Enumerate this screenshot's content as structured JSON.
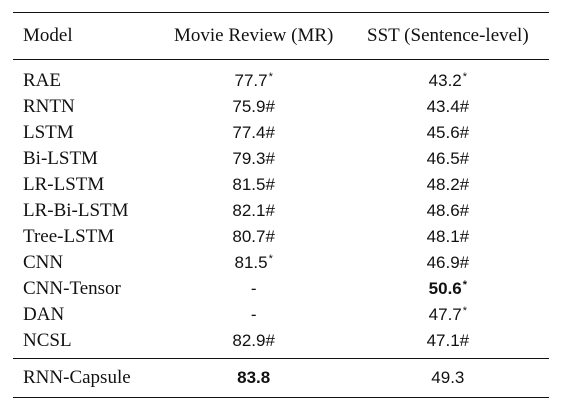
{
  "table": {
    "headers": {
      "model": "Model",
      "mr": "Movie Review (MR)",
      "sst": "SST (Sentence-level)"
    },
    "rows": [
      {
        "model": "RAE",
        "mr": "77.7",
        "mr_mark": "*",
        "sst": "43.2",
        "sst_mark": "*"
      },
      {
        "model": "RNTN",
        "mr": "75.9#",
        "mr_mark": "",
        "sst": "43.4#",
        "sst_mark": ""
      },
      {
        "model": "LSTM",
        "mr": "77.4#",
        "mr_mark": "",
        "sst": "45.6#",
        "sst_mark": ""
      },
      {
        "model": "Bi-LSTM",
        "mr": "79.3#",
        "mr_mark": "",
        "sst": "46.5#",
        "sst_mark": ""
      },
      {
        "model": "LR-LSTM",
        "mr": "81.5#",
        "mr_mark": "",
        "sst": "48.2#",
        "sst_mark": ""
      },
      {
        "model": "LR-Bi-LSTM",
        "mr": "82.1#",
        "mr_mark": "",
        "sst": "48.6#",
        "sst_mark": ""
      },
      {
        "model": "Tree-LSTM",
        "mr": "80.7#",
        "mr_mark": "",
        "sst": "48.1#",
        "sst_mark": ""
      },
      {
        "model": "CNN",
        "mr": "81.5",
        "mr_mark": "*",
        "sst": "46.9#",
        "sst_mark": ""
      },
      {
        "model": "CNN-Tensor",
        "mr": "-",
        "mr_mark": "",
        "sst": "50.6",
        "sst_mark": "*"
      },
      {
        "model": "DAN",
        "mr": "-",
        "mr_mark": "",
        "sst": "47.7",
        "sst_mark": "*"
      },
      {
        "model": "NCSL",
        "mr": "82.9#",
        "mr_mark": "",
        "sst": "47.1#",
        "sst_mark": ""
      }
    ],
    "summary": {
      "model": "RNN-Capsule",
      "mr": "83.8",
      "sst": "49.3"
    },
    "bold_cells": [
      "rows.8.sst",
      "summary.mr"
    ]
  }
}
